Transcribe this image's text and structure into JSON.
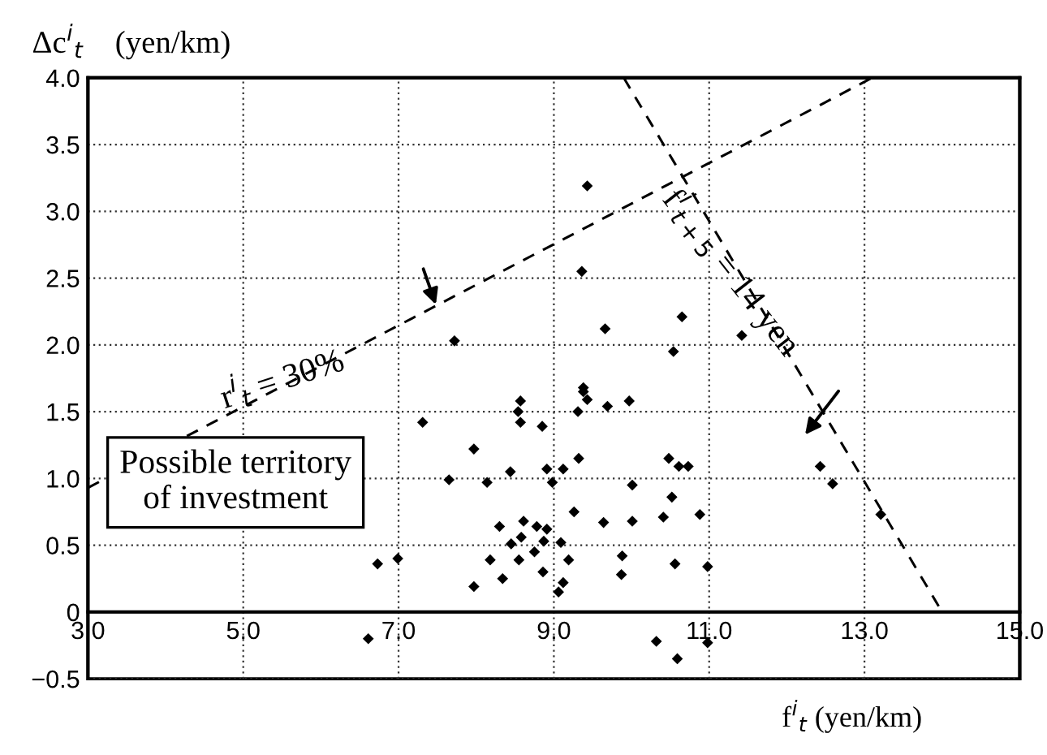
{
  "chart_data": {
    "type": "scatter",
    "xlabel": "f$^{i}$$_{t}$ (yen/km)",
    "ylabel": "Δc$^{i}$$_{t}$    (yen/km)",
    "xlim": [
      3.0,
      15.0
    ],
    "ylim": [
      -0.5,
      4.0
    ],
    "xticks": [
      {
        "value": 3,
        "label": "3.0"
      },
      {
        "value": 5,
        "label": "5.0"
      },
      {
        "value": 7,
        "label": "7.0"
      },
      {
        "value": 9,
        "label": "9.0"
      },
      {
        "value": 11,
        "label": "11.0"
      },
      {
        "value": 13,
        "label": "13.0"
      },
      {
        "value": 15,
        "label": "15.0"
      }
    ],
    "yticks": [
      {
        "value": -0.5,
        "label": "−0.5"
      },
      0,
      0.5,
      {
        "value": 1,
        "label": "1.0"
      },
      1.5,
      {
        "value": 2,
        "label": "2.0"
      },
      2.5,
      {
        "value": 3,
        "label": "3.0"
      },
      3.5,
      {
        "value": 4,
        "label": "4.0"
      }
    ],
    "grid": true,
    "series": [
      {
        "color": "#000000",
        "marker": "diamond",
        "x": [
          9.43,
          9.36,
          10.65,
          9.66,
          7.72,
          10.54,
          11.42,
          9.38,
          9.38,
          9.43,
          9.31,
          9.69,
          9.97,
          8.57,
          8.54,
          8.57,
          8.85,
          7.31,
          7.97,
          9.32,
          8.44,
          8.91,
          9.12,
          8.98,
          7.65,
          8.14,
          10.48,
          10.61,
          10.73,
          10.01,
          10.52,
          9.26,
          9.64,
          10.01,
          10.41,
          10.88,
          8.3,
          8.61,
          8.78,
          8.91,
          8.58,
          8.45,
          8.87,
          9.09,
          8.75,
          8.18,
          8.55,
          9.19,
          9.88,
          6.73,
          6.99,
          8.34,
          8.86,
          9.87,
          7.97,
          9.12,
          9.06,
          10.56,
          10.98,
          6.61,
          10.32,
          10.59,
          10.98,
          12.43,
          12.59,
          13.21
        ],
        "values": [
          3.19,
          2.55,
          2.21,
          2.12,
          2.03,
          1.95,
          2.07,
          1.68,
          1.65,
          1.59,
          1.5,
          1.54,
          1.58,
          1.58,
          1.5,
          1.42,
          1.39,
          1.42,
          1.22,
          1.15,
          1.05,
          1.07,
          1.07,
          0.97,
          0.99,
          0.97,
          1.15,
          1.09,
          1.09,
          0.95,
          0.86,
          0.75,
          0.67,
          0.68,
          0.71,
          0.73,
          0.64,
          0.68,
          0.64,
          0.62,
          0.56,
          0.51,
          0.53,
          0.52,
          0.45,
          0.39,
          0.39,
          0.39,
          0.42,
          0.36,
          0.4,
          0.25,
          0.3,
          0.28,
          0.19,
          0.22,
          0.15,
          0.36,
          0.34,
          -0.2,
          -0.22,
          -0.35,
          -0.23,
          1.09,
          0.96,
          0.73
        ]
      },
      {
        "type": "line",
        "color": "#000000",
        "marker": "none",
        "line_style": "dashed",
        "x": [
          3.0,
          13.1
        ],
        "values": [
          0.93,
          4.0
        ]
      },
      {
        "type": "line",
        "color": "#000000",
        "marker": "none",
        "line_style": "dashed",
        "x": [
          9.9,
          14.0
        ],
        "values": [
          4.0,
          0.0
        ]
      }
    ],
    "ref_lines": [
      {
        "axis": "y",
        "value": 0,
        "color": "#000000",
        "line_style": "solid"
      }
    ],
    "annotations": [
      {
        "text": "r$^{i}$$_{t}$ = 30%",
        "x": 5.5,
        "y": 1.75
      },
      {
        "text": "f$^{i}$$_{t+5}$ = 14 yen",
        "x": 11.3,
        "y": 2.55
      },
      "Possible territory\nof investment"
    ]
  }
}
